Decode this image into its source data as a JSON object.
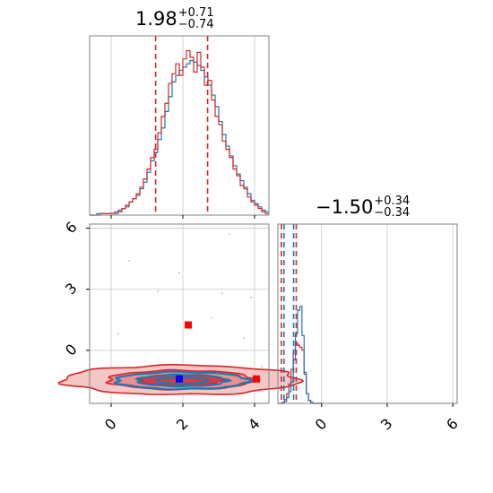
{
  "chart_data": {
    "type": "corner",
    "parameters": [
      {
        "id": "p1",
        "title": {
          "median": "1.98",
          "plus": "+0.71",
          "minus": "−0.74"
        },
        "range": [
          -0.6,
          4.4
        ],
        "ticks": [
          0,
          2,
          4
        ],
        "tick_labels": [
          "0",
          "2",
          "4"
        ],
        "quantiles": [
          1.24,
          2.69
        ],
        "hist_blue": {
          "bin_start": -0.6,
          "bin_width": 0.1,
          "counts": [
            0,
            0,
            1,
            1,
            1,
            1,
            1,
            1,
            3,
            4,
            5,
            8,
            10,
            12,
            16,
            20,
            26,
            33,
            38,
            46,
            53,
            63,
            72,
            81,
            85,
            88,
            90,
            92,
            94,
            93,
            91,
            88,
            84,
            79,
            73,
            66,
            57,
            49,
            42,
            36,
            30,
            25,
            21,
            17,
            13,
            9,
            7,
            5,
            3,
            2
          ]
        },
        "hist_red": {
          "bin_start": -0.6,
          "bin_width": 0.1,
          "counts": [
            0,
            0,
            0,
            1,
            1,
            1,
            1,
            2,
            2,
            4,
            6,
            8,
            10,
            13,
            17,
            22,
            28,
            35,
            40,
            50,
            60,
            68,
            80,
            86,
            92,
            85,
            95,
            100,
            96,
            87,
            99,
            90,
            79,
            82,
            70,
            60,
            55,
            45,
            40,
            35,
            28,
            24,
            18,
            16,
            11,
            8,
            6,
            4,
            2,
            1
          ]
        }
      },
      {
        "id": "p2",
        "title": {
          "median": "−1.50",
          "plus": "+0.34",
          "minus": "−0.34"
        },
        "range": [
          -2.0,
          6.2
        ],
        "ticks": [
          0,
          3,
          6
        ],
        "tick_labels": [
          "0",
          "3",
          "6"
        ],
        "quantiles": [
          -1.84,
          -1.16
        ],
        "hist_blue": {
          "bin_start": -2.0,
          "bin_width": 0.1,
          "counts": [
            0,
            0,
            0,
            2,
            6,
            12,
            22,
            45,
            72,
            96,
            100,
            70,
            32,
            10,
            3,
            1,
            0,
            0,
            0,
            0
          ]
        },
        "hist_red": {
          "bin_start": -2.0,
          "bin_width": 0.1,
          "counts": [
            0,
            0,
            1,
            4,
            10,
            20,
            35,
            55,
            62,
            60,
            58,
            55,
            30,
            10,
            3,
            1,
            0,
            0,
            0,
            0
          ]
        }
      }
    ],
    "joint": {
      "x_param": "p1",
      "y_param": "p2",
      "xlim": [
        -0.6,
        4.4
      ],
      "ylim": [
        -2.6,
        6.2
      ],
      "x_ticks": [
        0,
        2,
        4
      ],
      "x_tick_labels": [
        "0",
        "2",
        "4"
      ],
      "y_ticks": [
        0,
        3,
        6
      ],
      "y_tick_labels": [
        "0",
        "3",
        "6"
      ],
      "blue_contours": [
        {
          "cx": 1.98,
          "cy": -1.48,
          "rx": 1.85,
          "ry": 0.42
        },
        {
          "cx": 1.98,
          "cy": -1.48,
          "rx": 1.25,
          "ry": 0.28
        },
        {
          "cx": 1.98,
          "cy": -1.48,
          "rx": 0.7,
          "ry": 0.15
        }
      ],
      "red_contours": [
        {
          "cx": 1.95,
          "cy": -1.45,
          "rx": 3.3,
          "ry": 0.72
        },
        {
          "cx": 1.95,
          "cy": -1.45,
          "rx": 2.05,
          "ry": 0.47
        },
        {
          "cx": 1.95,
          "cy": -1.45,
          "rx": 1.15,
          "ry": 0.27
        }
      ],
      "markers": [
        {
          "x": 1.9,
          "y": -1.4,
          "color": "#0000ff"
        },
        {
          "x": 2.15,
          "y": 1.25,
          "color": "#ff0000"
        },
        {
          "x": 4.05,
          "y": -1.4,
          "color": "#ff0000"
        }
      ],
      "outlier_points": [
        {
          "x": 3.3,
          "y": 5.7
        },
        {
          "x": 1.9,
          "y": 3.8
        },
        {
          "x": 3.1,
          "y": 2.8
        },
        {
          "x": 3.9,
          "y": 2.6
        },
        {
          "x": 1.3,
          "y": 2.9
        },
        {
          "x": 0.2,
          "y": 0.8
        },
        {
          "x": 3.7,
          "y": 0.6
        },
        {
          "x": 2.8,
          "y": 1.6
        },
        {
          "x": -0.1,
          "y": -2.0
        },
        {
          "x": 0.1,
          "y": -0.9
        },
        {
          "x": 4.2,
          "y": -0.8
        },
        {
          "x": 0.5,
          "y": 4.4
        }
      ]
    },
    "colors": {
      "blue": "#1f77b4",
      "red": "#d62728",
      "grid": "#c8c8c8",
      "frame": "#808080",
      "dot_blue": "#9ab8d8",
      "dot_red": "#e8a0a0"
    },
    "grid": true
  }
}
